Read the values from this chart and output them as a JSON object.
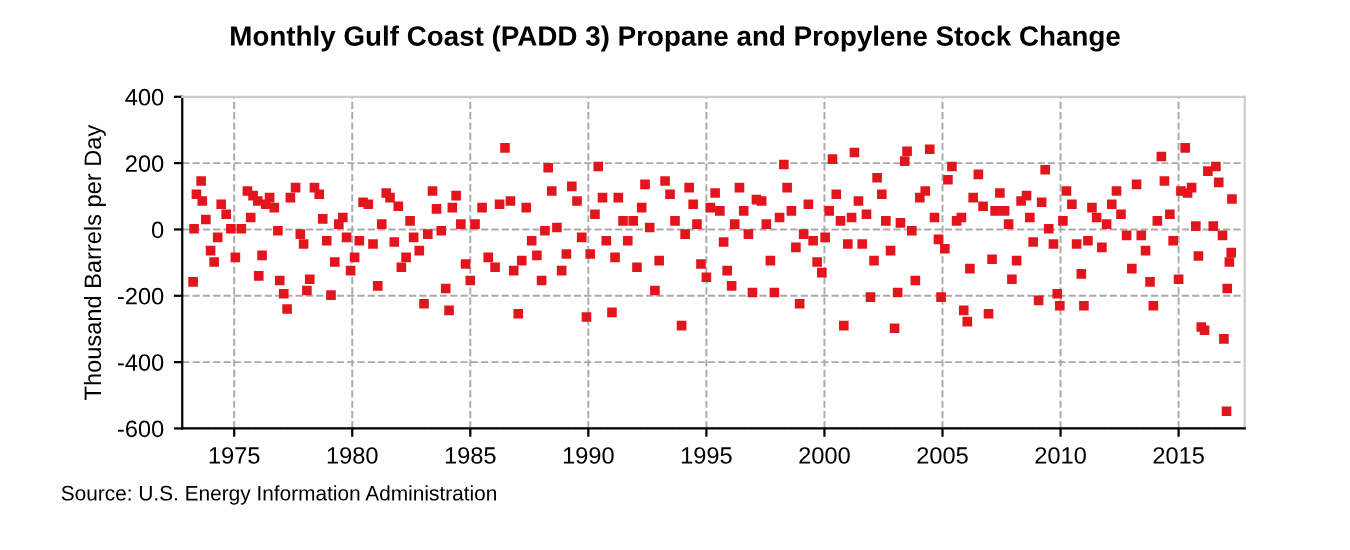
{
  "chart_data": {
    "type": "scatter",
    "title": "Monthly Gulf Coast (PADD 3) Propane and Propylene Stock Change",
    "ylabel": "Thousand Barrels per Day",
    "annotations": [
      "Source: U.S. Energy Information Administration"
    ],
    "marker": "square",
    "grid": true,
    "xlim": [
      1972.8,
      2017.8
    ],
    "xticks": [
      1975,
      1980,
      1985,
      1990,
      1995,
      2000,
      2005,
      2010,
      2015
    ],
    "ylim": [
      -600,
      400
    ],
    "yticks": [
      -600,
      -400,
      -200,
      0,
      200,
      400
    ],
    "series": [
      {
        "color": "#e3141c",
        "x": [
          1973.26,
          1973.3,
          1973.4,
          1973.6,
          1973.65,
          1973.8,
          1974.0,
          1974.15,
          1974.3,
          1974.45,
          1974.66,
          1974.86,
          1975.05,
          1975.3,
          1975.56,
          1975.7,
          1975.8,
          1976.0,
          1976.04,
          1976.18,
          1976.34,
          1976.5,
          1976.7,
          1976.85,
          1976.93,
          1977.1,
          1977.24,
          1977.38,
          1977.6,
          1977.8,
          1977.94,
          1978.08,
          1978.2,
          1978.4,
          1978.6,
          1978.75,
          1978.92,
          1979.1,
          1979.26,
          1979.43,
          1979.6,
          1979.76,
          1979.93,
          1980.1,
          1980.3,
          1980.46,
          1980.68,
          1980.88,
          1981.08,
          1981.25,
          1981.44,
          1981.6,
          1981.78,
          1981.95,
          1982.08,
          1982.28,
          1982.45,
          1982.6,
          1982.84,
          1983.04,
          1983.2,
          1983.4,
          1983.57,
          1983.77,
          1983.96,
          1984.1,
          1984.24,
          1984.4,
          1984.6,
          1984.8,
          1985.0,
          1985.2,
          1985.5,
          1985.76,
          1986.05,
          1986.24,
          1986.47,
          1986.7,
          1986.84,
          1987.03,
          1987.18,
          1987.37,
          1987.6,
          1987.82,
          1988.02,
          1988.16,
          1988.3,
          1988.45,
          1988.67,
          1988.87,
          1989.07,
          1989.3,
          1989.52,
          1989.72,
          1989.92,
          1990.08,
          1990.28,
          1990.42,
          1990.6,
          1990.76,
          1991.0,
          1991.13,
          1991.27,
          1991.47,
          1991.67,
          1991.9,
          1992.06,
          1992.26,
          1992.4,
          1992.6,
          1992.82,
          1993.0,
          1993.25,
          1993.46,
          1993.67,
          1993.95,
          1994.1,
          1994.27,
          1994.44,
          1994.6,
          1994.77,
          1995.0,
          1995.17,
          1995.37,
          1995.57,
          1995.73,
          1995.88,
          1996.07,
          1996.2,
          1996.4,
          1996.58,
          1996.78,
          1996.95,
          1997.12,
          1997.34,
          1997.54,
          1997.71,
          1997.88,
          1998.1,
          1998.28,
          1998.42,
          1998.6,
          1998.79,
          1998.95,
          1999.12,
          1999.32,
          1999.52,
          1999.69,
          1999.89,
          2000.03,
          2000.2,
          2000.34,
          2000.5,
          2000.68,
          2000.82,
          2000.99,
          2001.15,
          2001.27,
          2001.44,
          2001.6,
          2001.78,
          2001.95,
          2002.1,
          2002.23,
          2002.43,
          2002.6,
          2002.8,
          2002.97,
          2003.1,
          2003.22,
          2003.4,
          2003.5,
          2003.7,
          2003.85,
          2004.04,
          2004.27,
          2004.46,
          2004.66,
          2004.83,
          2004.94,
          2005.1,
          2005.23,
          2005.4,
          2005.6,
          2005.8,
          2005.9,
          2006.05,
          2006.16,
          2006.3,
          2006.52,
          2006.72,
          2006.95,
          2007.1,
          2007.23,
          2007.43,
          2007.63,
          2007.8,
          2007.94,
          2008.14,
          2008.33,
          2008.56,
          2008.7,
          2008.84,
          2009.07,
          2009.2,
          2009.35,
          2009.5,
          2009.7,
          2009.86,
          2009.97,
          2010.1,
          2010.25,
          2010.48,
          2010.68,
          2010.88,
          2010.99,
          2011.16,
          2011.33,
          2011.53,
          2011.75,
          2011.95,
          2012.17,
          2012.37,
          2012.56,
          2012.8,
          2013.02,
          2013.22,
          2013.42,
          2013.6,
          2013.79,
          2013.93,
          2014.1,
          2014.27,
          2014.4,
          2014.63,
          2014.77,
          2015.0,
          2015.1,
          2015.28,
          2015.38,
          2015.55,
          2015.73,
          2015.84,
          2015.96,
          2016.1,
          2016.24,
          2016.47,
          2016.58,
          2016.7,
          2016.86,
          2016.92,
          2017.03,
          2017.06,
          2017.15,
          2017.23,
          2017.26
        ],
        "values": [
          -158,
          2,
          106,
          146,
          86,
          30,
          -64,
          -98,
          -24,
          76,
          46,
          2,
          -84,
          2,
          116,
          36,
          102,
          86,
          -140,
          -78,
          76,
          96,
          66,
          -4,
          -154,
          -194,
          -240,
          96,
          126,
          -14,
          -44,
          -184,
          -150,
          126,
          106,
          32,
          -34,
          -198,
          -98,
          16,
          36,
          -24,
          -124,
          -84,
          -34,
          82,
          76,
          -44,
          -170,
          16,
          110,
          96,
          -38,
          70,
          -114,
          -84,
          26,
          -24,
          -64,
          -224,
          -14,
          116,
          62,
          -4,
          -178,
          -244,
          66,
          102,
          16,
          -104,
          -154,
          16,
          66,
          -84,
          -114,
          76,
          246,
          86,
          -124,
          -254,
          -94,
          66,
          -34,
          -78,
          -154,
          -4,
          186,
          116,
          6,
          -124,
          -74,
          130,
          86,
          -24,
          -264,
          -74,
          46,
          190,
          96,
          -34,
          -250,
          -84,
          96,
          26,
          -34,
          26,
          -114,
          66,
          136,
          6,
          -184,
          -94,
          146,
          106,
          26,
          -290,
          -14,
          126,
          76,
          16,
          -104,
          -144,
          66,
          110,
          56,
          -38,
          -124,
          -170,
          16,
          126,
          56,
          -14,
          -190,
          90,
          86,
          16,
          -94,
          -190,
          36,
          196,
          126,
          56,
          -54,
          -224,
          -14,
          76,
          -34,
          -98,
          -130,
          -24,
          56,
          212,
          106,
          26,
          -290,
          -44,
          36,
          232,
          86,
          -44,
          46,
          -204,
          -94,
          156,
          106,
          26,
          -64,
          -298,
          -190,
          20,
          206,
          236,
          -4,
          -154,
          96,
          116,
          242,
          36,
          -30,
          -204,
          -58,
          150,
          190,
          26,
          36,
          -244,
          -278,
          -118,
          96,
          166,
          70,
          -254,
          -90,
          56,
          110,
          56,
          16,
          -150,
          -94,
          86,
          102,
          36,
          -38,
          -214,
          82,
          180,
          2,
          -44,
          -194,
          -230,
          26,
          116,
          76,
          -44,
          -134,
          -230,
          -34,
          66,
          36,
          -54,
          16,
          76,
          116,
          46,
          -18,
          -118,
          136,
          -18,
          -64,
          -158,
          -230,
          26,
          220,
          146,
          46,
          -34,
          -150,
          116,
          246,
          110,
          126,
          10,
          -80,
          -294,
          -304,
          176,
          10,
          190,
          142,
          -18,
          -330,
          -548,
          -178,
          -98,
          -70,
          92
        ]
      }
    ]
  }
}
